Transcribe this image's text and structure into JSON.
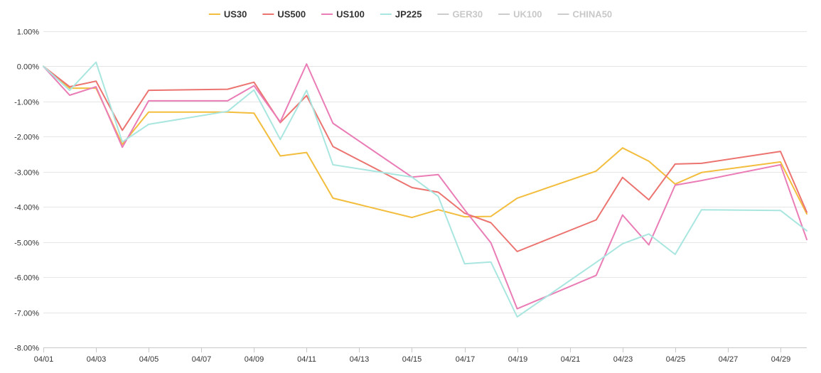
{
  "chart_data": {
    "type": "line",
    "title": "",
    "xlabel": "",
    "ylabel": "",
    "x_domain": [
      "04/01",
      "04/30"
    ],
    "x_tick_labels": [
      "04/01",
      "04/03",
      "04/05",
      "04/07",
      "04/09",
      "04/11",
      "04/13",
      "04/15",
      "04/17",
      "04/19",
      "04/21",
      "04/23",
      "04/25",
      "04/27",
      "04/29"
    ],
    "ylim": [
      -8,
      1
    ],
    "y_ticks": [
      1,
      0,
      -1,
      -2,
      -3,
      -4,
      -5,
      -6,
      -7,
      -8
    ],
    "y_tick_labels": [
      "1.00%",
      "0.00%",
      "-1.00%",
      "-2.00%",
      "-3.00%",
      "-4.00%",
      "-5.00%",
      "-6.00%",
      "-7.00%",
      "-8.00%"
    ],
    "grid": true,
    "legend_position": "top-center",
    "series": [
      {
        "name": "US30",
        "color": "#f3bd3d",
        "active": true,
        "points": [
          [
            "04/01",
            0
          ],
          [
            "04/02",
            -0.62
          ],
          [
            "04/03",
            -0.62
          ],
          [
            "04/04",
            -2.22
          ],
          [
            "04/05",
            -1.3
          ],
          [
            "04/08",
            -1.3
          ],
          [
            "04/09",
            -1.33
          ],
          [
            "04/10",
            -2.55
          ],
          [
            "04/11",
            -2.45
          ],
          [
            "04/12",
            -3.75
          ],
          [
            "04/15",
            -4.3
          ],
          [
            "04/16",
            -4.08
          ],
          [
            "04/17",
            -4.28
          ],
          [
            "04/18",
            -4.27
          ],
          [
            "04/19",
            -3.75
          ],
          [
            "04/22",
            -2.98
          ],
          [
            "04/23",
            -2.32
          ],
          [
            "04/24",
            -2.7
          ],
          [
            "04/25",
            -3.35
          ],
          [
            "04/26",
            -3.02
          ],
          [
            "04/29",
            -2.72
          ],
          [
            "04/30",
            -4.2
          ]
        ]
      },
      {
        "name": "US500",
        "color": "#ec7470",
        "active": true,
        "points": [
          [
            "04/01",
            0
          ],
          [
            "04/02",
            -0.58
          ],
          [
            "04/03",
            -0.42
          ],
          [
            "04/04",
            -1.82
          ],
          [
            "04/05",
            -0.68
          ],
          [
            "04/08",
            -0.65
          ],
          [
            "04/09",
            -0.45
          ],
          [
            "04/10",
            -1.6
          ],
          [
            "04/11",
            -0.83
          ],
          [
            "04/12",
            -2.28
          ],
          [
            "04/15",
            -3.45
          ],
          [
            "04/16",
            -3.58
          ],
          [
            "04/17",
            -4.18
          ],
          [
            "04/18",
            -4.45
          ],
          [
            "04/19",
            -5.27
          ],
          [
            "04/22",
            -4.37
          ],
          [
            "04/23",
            -3.16
          ],
          [
            "04/24",
            -3.8
          ],
          [
            "04/25",
            -2.78
          ],
          [
            "04/26",
            -2.76
          ],
          [
            "04/29",
            -2.42
          ],
          [
            "04/30",
            -4.15
          ]
        ]
      },
      {
        "name": "US100",
        "color": "#ea7cb6",
        "active": true,
        "points": [
          [
            "04/01",
            0
          ],
          [
            "04/02",
            -0.82
          ],
          [
            "04/03",
            -0.58
          ],
          [
            "04/04",
            -2.3
          ],
          [
            "04/05",
            -0.98
          ],
          [
            "04/08",
            -0.98
          ],
          [
            "04/09",
            -0.55
          ],
          [
            "04/10",
            -1.58
          ],
          [
            "04/11",
            0.07
          ],
          [
            "04/12",
            -1.62
          ],
          [
            "04/15",
            -3.15
          ],
          [
            "04/16",
            -3.08
          ],
          [
            "04/17",
            -4.08
          ],
          [
            "04/18",
            -5.02
          ],
          [
            "04/19",
            -6.9
          ],
          [
            "04/22",
            -5.95
          ],
          [
            "04/23",
            -4.23
          ],
          [
            "04/24",
            -5.08
          ],
          [
            "04/25",
            -3.38
          ],
          [
            "04/26",
            -3.25
          ],
          [
            "04/29",
            -2.8
          ],
          [
            "04/30",
            -4.93
          ]
        ]
      },
      {
        "name": "JP225",
        "color": "#a9e6e0",
        "active": true,
        "points": [
          [
            "04/01",
            0
          ],
          [
            "04/02",
            -0.68
          ],
          [
            "04/03",
            0.12
          ],
          [
            "04/04",
            -2.15
          ],
          [
            "04/05",
            -1.65
          ],
          [
            "04/08",
            -1.28
          ],
          [
            "04/09",
            -0.67
          ],
          [
            "04/10",
            -2.08
          ],
          [
            "04/11",
            -0.68
          ],
          [
            "04/12",
            -2.8
          ],
          [
            "04/15",
            -3.15
          ],
          [
            "04/16",
            -3.7
          ],
          [
            "04/17",
            -5.62
          ],
          [
            "04/18",
            -5.57
          ],
          [
            "04/19",
            -7.13
          ],
          [
            "04/22",
            -5.58
          ],
          [
            "04/23",
            -5.05
          ],
          [
            "04/24",
            -4.77
          ],
          [
            "04/25",
            -5.35
          ],
          [
            "04/26",
            -4.08
          ],
          [
            "04/29",
            -4.1
          ],
          [
            "04/30",
            -4.68
          ]
        ]
      },
      {
        "name": "GER30",
        "color": "#cccccc",
        "active": false,
        "points": []
      },
      {
        "name": "UK100",
        "color": "#cccccc",
        "active": false,
        "points": []
      },
      {
        "name": "CHINA50",
        "color": "#cccccc",
        "active": false,
        "points": []
      }
    ]
  }
}
